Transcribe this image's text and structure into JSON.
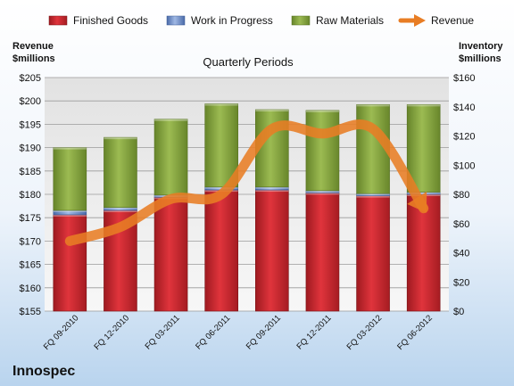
{
  "company": "Innospec",
  "chart_data": {
    "type": "bar",
    "title": "Quarterly Periods",
    "left_axis": {
      "label_line1": "Revenue",
      "label_line2": "$millions",
      "min": 155,
      "max": 205,
      "step": 5,
      "prefix": "$"
    },
    "right_axis": {
      "label_line1": "Inventory",
      "label_line2": "$millions",
      "min": 0,
      "max": 160,
      "step": 20,
      "prefix": "$"
    },
    "categories": [
      "FQ 09-2010",
      "FQ 12-2010",
      "FQ 03-2011",
      "FQ 06-2011",
      "FQ 09-2011",
      "FQ 12-2011",
      "FQ 03-2012",
      "FQ 06-2012"
    ],
    "stacked_series": [
      {
        "name": "Finished Goods",
        "axis": "right",
        "color": "#c0212a",
        "values": [
          66,
          69,
          78,
          83,
          83,
          81,
          79,
          80
        ]
      },
      {
        "name": "Work in Progress",
        "axis": "right",
        "color": "#5b7fc4",
        "values": [
          3,
          2,
          1.5,
          2,
          2,
          1.5,
          1.5,
          1.5
        ]
      },
      {
        "name": "Raw Materials",
        "axis": "right",
        "color": "#7e9e34",
        "values": [
          43,
          48,
          52,
          57,
          53,
          55,
          61,
          60
        ]
      }
    ],
    "line_series": {
      "name": "Revenue",
      "axis": "left",
      "color": "#e87d24",
      "values": [
        170,
        173,
        179,
        180,
        194,
        193,
        194,
        177
      ]
    },
    "grid": true,
    "legend_position": "top"
  }
}
